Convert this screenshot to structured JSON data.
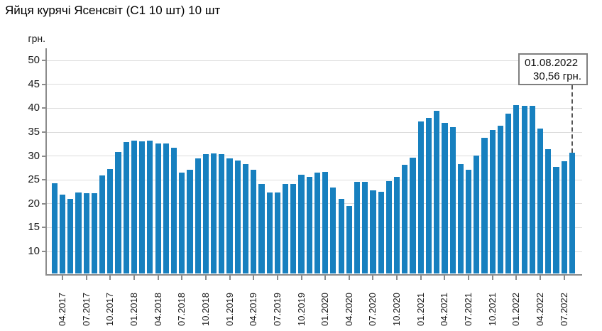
{
  "page": {
    "title": "Яйця курячі Ясенсвіт (С1 10 шт) 10 шт"
  },
  "y_axis": {
    "unit_label": "грн."
  },
  "annotation": {
    "date": "01.08.2022",
    "value_label": "30,56 грн."
  },
  "colors": {
    "bar": "#1780bf",
    "grid": "#dcdcdc",
    "axis": "#8c8c8c",
    "text": "#1a1a1a",
    "annotation_border": "#7f7f7f",
    "pointer_line": "#555555"
  },
  "chart_data": {
    "type": "bar",
    "title": "Яйця курячі Ясенсвіт (С1 10 шт) 10 шт",
    "xlabel": "",
    "ylabel": "грн.",
    "grid": true,
    "ylim": [
      5.2,
      52.5
    ],
    "yticks": [
      10,
      15,
      20,
      25,
      30,
      35,
      40,
      45,
      50
    ],
    "xtick_labels": [
      "04.2017",
      "07.2017",
      "10.2017",
      "01.2018",
      "04.2018",
      "07.2018",
      "10.2018",
      "01.2019",
      "04.2019",
      "07.2019",
      "10.2019",
      "01.2020",
      "04.2020",
      "07.2020",
      "10.2020",
      "01.2021",
      "04.2021",
      "07.2021",
      "10.2021",
      "01.2022",
      "04.2022",
      "07.2022"
    ],
    "x": [
      "03.2017",
      "04.2017",
      "05.2017",
      "06.2017",
      "07.2017",
      "08.2017",
      "09.2017",
      "10.2017",
      "11.2017",
      "12.2017",
      "01.2018",
      "02.2018",
      "03.2018",
      "04.2018",
      "05.2018",
      "06.2018",
      "07.2018",
      "08.2018",
      "09.2018",
      "10.2018",
      "11.2018",
      "12.2018",
      "01.2019",
      "02.2019",
      "03.2019",
      "04.2019",
      "05.2019",
      "06.2019",
      "07.2019",
      "08.2019",
      "09.2019",
      "10.2019",
      "11.2019",
      "12.2019",
      "01.2020",
      "02.2020",
      "03.2020",
      "04.2020",
      "05.2020",
      "06.2020",
      "07.2020",
      "08.2020",
      "09.2020",
      "10.2020",
      "11.2020",
      "12.2020",
      "01.2021",
      "02.2021",
      "03.2021",
      "04.2021",
      "05.2021",
      "06.2021",
      "07.2021",
      "08.2021",
      "09.2021",
      "10.2021",
      "11.2021",
      "12.2021",
      "01.2022",
      "02.2022",
      "03.2022",
      "04.2022",
      "05.2022",
      "06.2022",
      "07.2022",
      "08.2022"
    ],
    "values": [
      24.2,
      21.8,
      20.9,
      22.3,
      22.1,
      22.1,
      25.9,
      27.2,
      30.8,
      32.9,
      33.2,
      33.0,
      33.2,
      32.5,
      32.5,
      31.6,
      26.5,
      27.1,
      29.4,
      30.3,
      30.4,
      30.3,
      29.4,
      28.9,
      28.2,
      27.1,
      24.0,
      22.3,
      22.3,
      24.0,
      24.0,
      26.0,
      25.6,
      26.4,
      26.6,
      23.3,
      20.9,
      19.4,
      24.5,
      24.5,
      22.7,
      22.4,
      24.7,
      25.6,
      28.1,
      29.5,
      37.1,
      37.9,
      39.4,
      36.9,
      35.9,
      28.2,
      27.0,
      30.0,
      33.7,
      35.3,
      36.3,
      38.8,
      40.6,
      40.4,
      40.4,
      35.6,
      31.4,
      27.7,
      28.8,
      30.56
    ],
    "annotation": {
      "date": "01.08.2022",
      "value": 30.56,
      "label": "30,56 грн."
    },
    "legend": null
  }
}
